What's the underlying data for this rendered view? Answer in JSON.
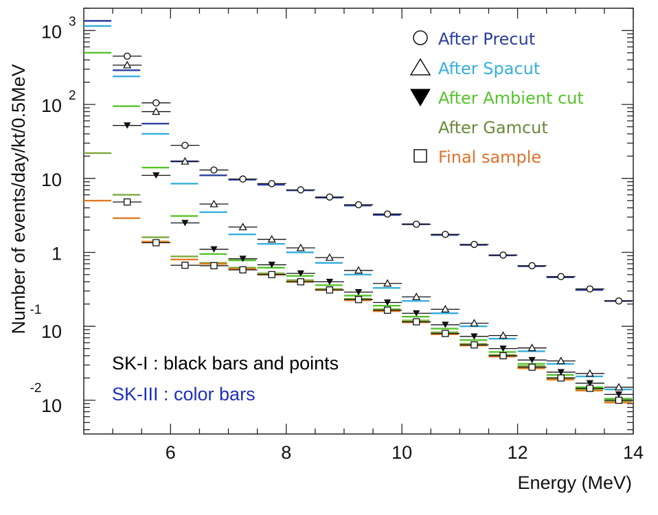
{
  "chart_data": {
    "type": "scatter",
    "title": "",
    "xlabel": "Energy (MeV)",
    "ylabel": "Number of events/day/kt/0.5MeV",
    "xlim": [
      4.5,
      14
    ],
    "ylim": [
      0.0035,
      2000
    ],
    "yscale": "log",
    "x_ticks": [
      "6",
      "8",
      "10",
      "12",
      "14"
    ],
    "y_ticks": [
      {
        "base": "10",
        "exp": "3"
      },
      {
        "base": "10",
        "exp": "2"
      },
      {
        "base": "10",
        "exp": ""
      },
      {
        "base": "1",
        "exp": ""
      },
      {
        "base": "10",
        "exp": "-1"
      },
      {
        "base": "10",
        "exp": "-2"
      }
    ],
    "bin_width": 0.5,
    "sk1_series": [
      {
        "name": "After Precut",
        "marker": "circle",
        "x": [
          5.25,
          5.75,
          6.25,
          6.75,
          7.25,
          7.75,
          8.25,
          8.75,
          9.25,
          9.75,
          10.25,
          10.75,
          11.25,
          11.75,
          12.25,
          12.75,
          13.25,
          13.75
        ],
        "values": [
          450,
          105,
          28,
          13,
          9.8,
          8.5,
          7,
          5.6,
          4.4,
          3.3,
          2.4,
          1.75,
          1.28,
          0.92,
          0.66,
          0.47,
          0.32,
          0.22
        ]
      },
      {
        "name": "After Spacut",
        "marker": "triangle",
        "x": [
          5.25,
          5.75,
          6.25,
          6.75,
          7.25,
          7.75,
          8.25,
          8.75,
          9.25,
          9.75,
          10.25,
          10.75,
          11.25,
          11.75,
          12.25,
          12.75,
          13.25,
          13.75
        ],
        "values": [
          340,
          80,
          17,
          4.5,
          2.2,
          1.5,
          1.15,
          0.85,
          0.57,
          0.38,
          0.25,
          0.17,
          0.11,
          0.075,
          0.051,
          0.034,
          0.023,
          0.015
        ]
      },
      {
        "name": "After Ambient cut",
        "marker": "triangle-down",
        "x": [
          5.25,
          5.75,
          6.25,
          6.75,
          7.25,
          7.75,
          8.25,
          8.75,
          9.25,
          9.75,
          10.25,
          10.75,
          11.25,
          11.75,
          12.25,
          12.75,
          13.25,
          13.75
        ],
        "values": [
          52,
          11,
          2.5,
          1.1,
          0.82,
          0.68,
          0.52,
          0.4,
          0.29,
          0.21,
          0.15,
          0.105,
          0.073,
          0.05,
          0.035,
          0.024,
          0.017,
          0.012
        ]
      },
      {
        "name": "Final sample",
        "marker": "square",
        "x": [
          5.25,
          5.75,
          6.25,
          6.75,
          7.25,
          7.75,
          8.25,
          8.75,
          9.25,
          9.75,
          10.25,
          10.75,
          11.25,
          11.75,
          12.25,
          12.75,
          13.25,
          13.75
        ],
        "values": [
          4.8,
          1.35,
          0.67,
          0.66,
          0.58,
          0.5,
          0.4,
          0.31,
          0.23,
          0.165,
          0.115,
          0.08,
          0.056,
          0.04,
          0.028,
          0.02,
          0.0145,
          0.01
        ]
      }
    ],
    "sk3_series": [
      {
        "name": "After Precut",
        "color": "#2a3f9e",
        "x": [
          4.75,
          5.25,
          5.75,
          6.25,
          6.75,
          7.25,
          7.75,
          8.25,
          8.75,
          9.25,
          9.75,
          10.25,
          10.75,
          11.25,
          11.75,
          12.25,
          12.75,
          13.25,
          13.75
        ],
        "values": [
          1350,
          290,
          55,
          17,
          11,
          9.6,
          8.2,
          6.9,
          5.5,
          4.3,
          3.2,
          2.4,
          1.72,
          1.26,
          0.91,
          0.65,
          0.46,
          0.31,
          0.22
        ]
      },
      {
        "name": "After Spacut",
        "color": "#35aede",
        "x": [
          4.75,
          5.25,
          5.75,
          6.25,
          6.75,
          7.25,
          7.75,
          8.25,
          8.75,
          9.25,
          9.75,
          10.25,
          10.75,
          11.25,
          11.75,
          12.25,
          12.75,
          13.25,
          13.75
        ],
        "values": [
          1150,
          240,
          40,
          8.5,
          3.5,
          1.75,
          1.3,
          1.0,
          0.72,
          0.5,
          0.33,
          0.22,
          0.15,
          0.1,
          0.068,
          0.046,
          0.031,
          0.021,
          0.014
        ]
      },
      {
        "name": "After Ambient cut",
        "color": "#55c32a",
        "x": [
          4.75,
          5.25,
          5.75,
          6.25,
          6.75,
          7.25,
          7.75,
          8.25,
          8.75,
          9.25,
          9.75,
          10.25,
          10.75,
          11.25,
          11.75,
          12.25,
          12.75,
          13.25,
          13.75
        ],
        "values": [
          500,
          95,
          14,
          3.1,
          0.95,
          0.78,
          0.62,
          0.48,
          0.36,
          0.26,
          0.19,
          0.135,
          0.093,
          0.065,
          0.045,
          0.031,
          0.022,
          0.015,
          0.0105
        ]
      },
      {
        "name": "After Gamcut",
        "color": "#7aa83a",
        "x": [
          4.75,
          5.25,
          5.75,
          6.25,
          6.75,
          7.25,
          7.75,
          8.25,
          8.75,
          9.25,
          9.75,
          10.25,
          10.75,
          11.25,
          11.75,
          12.25,
          12.75,
          13.25,
          13.75
        ],
        "values": [
          22,
          6,
          1.6,
          0.88,
          0.72,
          0.62,
          0.52,
          0.42,
          0.32,
          0.235,
          0.17,
          0.12,
          0.083,
          0.058,
          0.041,
          0.029,
          0.02,
          0.014,
          0.0098
        ]
      },
      {
        "name": "Final sample",
        "color": "#e07a1e",
        "x": [
          4.75,
          5.25,
          5.75,
          6.25,
          6.75,
          7.25,
          7.75,
          8.25,
          8.75,
          9.25,
          9.75,
          10.25,
          10.75,
          11.25,
          11.75,
          12.25,
          12.75,
          13.25,
          13.75
        ],
        "values": [
          5.0,
          2.9,
          1.4,
          0.8,
          0.7,
          0.6,
          0.5,
          0.4,
          0.31,
          0.225,
          0.16,
          0.113,
          0.078,
          0.055,
          0.039,
          0.027,
          0.019,
          0.0135,
          0.0093
        ]
      }
    ],
    "legend": {
      "position": "top-right",
      "items": [
        {
          "label": "After Precut",
          "marker": "circle",
          "color": "#2a3f9e"
        },
        {
          "label": "After Spacut",
          "marker": "triangle",
          "color": "#35aede"
        },
        {
          "label": "After Ambient cut",
          "marker": "triangle-down",
          "color": "#55c32a"
        },
        {
          "label": "After Gamcut",
          "marker": "none",
          "color": "#6a8a3a"
        },
        {
          "label": "Final sample",
          "marker": "square",
          "color": "#e0702a"
        }
      ]
    },
    "annotations": [
      {
        "text": "SK-I : black bars and points",
        "color": "#000000"
      },
      {
        "text": "SK-III : color bars",
        "color": "#1c2fc0"
      }
    ]
  }
}
